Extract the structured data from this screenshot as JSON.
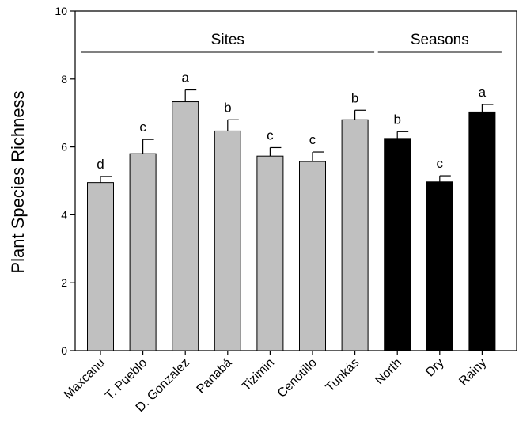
{
  "chart_data": {
    "type": "bar",
    "ylabel": "Plant Species Richness",
    "xlabel": "",
    "ylim": [
      0,
      10
    ],
    "yticks": [
      0,
      2,
      4,
      6,
      8,
      10
    ],
    "categories": [
      "Maxcanu",
      "T. Pueblo",
      "D. Gonzalez",
      "Panabá",
      "Tizimin",
      "Cenotillo",
      "Tunkás",
      "North",
      "Dry",
      "Rainy"
    ],
    "values": [
      4.95,
      5.8,
      7.33,
      6.47,
      5.73,
      5.57,
      6.8,
      6.25,
      4.97,
      7.03
    ],
    "errors": [
      0.18,
      0.42,
      0.35,
      0.33,
      0.25,
      0.28,
      0.28,
      0.2,
      0.18,
      0.22
    ],
    "significance": [
      "d",
      "c",
      "a",
      "b",
      "c",
      "c",
      "b",
      "b",
      "c",
      "a"
    ],
    "colors": [
      "#c0c0c0",
      "#c0c0c0",
      "#c0c0c0",
      "#c0c0c0",
      "#c0c0c0",
      "#c0c0c0",
      "#c0c0c0",
      "#000000",
      "#000000",
      "#000000"
    ],
    "groups": [
      {
        "label": "Sites",
        "from": 0,
        "to": 6
      },
      {
        "label": "Seasons",
        "from": 7,
        "to": 9
      }
    ],
    "grid": false,
    "legend": "none"
  }
}
